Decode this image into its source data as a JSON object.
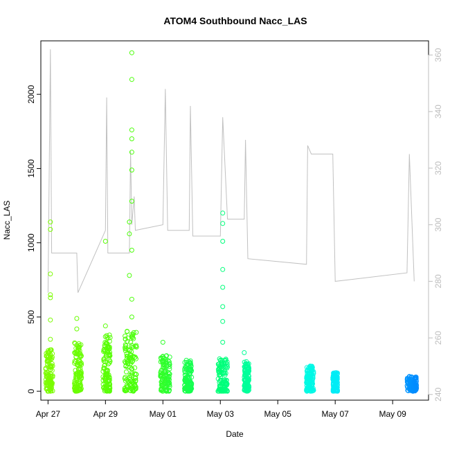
{
  "chart_data": {
    "type": "scatter",
    "title": "ATOM4 Southbound Nacc_LAS",
    "xlabel": "Date",
    "ylabel": "Nacc_LAS",
    "xlim": [
      "2018-04-26T18:00",
      "2018-05-10T06:00"
    ],
    "ylim": [
      -60,
      2360
    ],
    "y2lim": [
      238,
      365
    ],
    "grid": false,
    "x_ticks": [
      {
        "date": "2018-04-27",
        "label": "Apr 27"
      },
      {
        "date": "2018-04-29",
        "label": "Apr 29"
      },
      {
        "date": "2018-05-01",
        "label": "May 01"
      },
      {
        "date": "2018-05-03",
        "label": "May 03"
      },
      {
        "date": "2018-05-05",
        "label": "May 05"
      },
      {
        "date": "2018-05-07",
        "label": "May 07"
      },
      {
        "date": "2018-05-09",
        "label": "May 09"
      }
    ],
    "y_ticks": [
      0,
      500,
      1000,
      1500,
      2000
    ],
    "y2_ticks": [
      240,
      260,
      280,
      300,
      320,
      340,
      360
    ],
    "point_color_map": "time gradient from yellow-green (start) through green and cyan to blue (end)",
    "series": [
      {
        "kind": "points",
        "points": [
          {
            "x": "2018-04-27T02:00",
            "y": 1140
          },
          {
            "x": "2018-04-27T02:00",
            "y": 1090
          },
          {
            "x": "2018-04-27T02:00",
            "y": 790
          },
          {
            "x": "2018-04-27T02:00",
            "y": 650
          },
          {
            "x": "2018-04-27T02:00",
            "y": 630
          },
          {
            "x": "2018-04-27T02:00",
            "y": 480
          },
          {
            "x": "2018-04-27T02:00",
            "y": 350
          },
          {
            "x": "2018-04-28T00:00",
            "y": 490
          },
          {
            "x": "2018-04-28T00:00",
            "y": 420
          },
          {
            "x": "2018-04-29T00:00",
            "y": 1010
          },
          {
            "x": "2018-04-29T00:00",
            "y": 440
          },
          {
            "x": "2018-04-29T22:00",
            "y": 2280
          },
          {
            "x": "2018-04-29T22:00",
            "y": 2100
          },
          {
            "x": "2018-04-29T22:00",
            "y": 1760
          },
          {
            "x": "2018-04-29T22:00",
            "y": 1700
          },
          {
            "x": "2018-04-29T22:00",
            "y": 1610
          },
          {
            "x": "2018-04-29T22:00",
            "y": 1490
          },
          {
            "x": "2018-04-29T22:00",
            "y": 1280
          },
          {
            "x": "2018-04-29T20:00",
            "y": 1140
          },
          {
            "x": "2018-04-29T20:00",
            "y": 1060
          },
          {
            "x": "2018-04-29T22:00",
            "y": 950
          },
          {
            "x": "2018-04-29T20:00",
            "y": 780
          },
          {
            "x": "2018-04-29T22:00",
            "y": 620
          },
          {
            "x": "2018-04-29T22:00",
            "y": 500
          },
          {
            "x": "2018-05-01T00:00",
            "y": 330
          },
          {
            "x": "2018-05-03T02:00",
            "y": 1200
          },
          {
            "x": "2018-05-03T02:00",
            "y": 1130
          },
          {
            "x": "2018-05-03T02:00",
            "y": 1010
          },
          {
            "x": "2018-05-03T02:00",
            "y": 820
          },
          {
            "x": "2018-05-03T02:00",
            "y": 700
          },
          {
            "x": "2018-05-03T02:00",
            "y": 570
          },
          {
            "x": "2018-05-03T02:00",
            "y": 470
          },
          {
            "x": "2018-05-03T02:00",
            "y": 330
          },
          {
            "x": "2018-05-03T20:00",
            "y": 260
          },
          {
            "x": "2018-05-09T14:00",
            "y": 100
          }
        ]
      },
      {
        "kind": "point-clusters",
        "clusters": [
          {
            "x_start": "2018-04-26T22:00",
            "x_end": "2018-04-27T04:00",
            "y_max": 280
          },
          {
            "x_start": "2018-04-27T22:00",
            "x_end": "2018-04-28T04:00",
            "y_max": 330
          },
          {
            "x_start": "2018-04-28T22:00",
            "x_end": "2018-04-29T04:00",
            "y_max": 380
          },
          {
            "x_start": "2018-04-29T16:00",
            "x_end": "2018-04-30T02:00",
            "y_max": 420
          },
          {
            "x_start": "2018-04-30T22:00",
            "x_end": "2018-05-01T06:00",
            "y_max": 250
          },
          {
            "x_start": "2018-05-01T18:00",
            "x_end": "2018-05-02T00:00",
            "y_max": 210
          },
          {
            "x_start": "2018-05-02T22:00",
            "x_end": "2018-05-03T06:00",
            "y_max": 220
          },
          {
            "x_start": "2018-05-03T20:00",
            "x_end": "2018-05-04T00:00",
            "y_max": 200
          },
          {
            "x_start": "2018-05-06T00:00",
            "x_end": "2018-05-06T06:00",
            "y_max": 170
          },
          {
            "x_start": "2018-05-06T22:00",
            "x_end": "2018-05-07T02:00",
            "y_max": 125
          },
          {
            "x_start": "2018-05-09T12:00",
            "x_end": "2018-05-09T20:00",
            "y_max": 100
          }
        ]
      },
      {
        "kind": "line",
        "axis": "right",
        "color": "#c0c0c0",
        "points": [
          {
            "x": "2018-04-27T00:00",
            "y": 276
          },
          {
            "x": "2018-04-27T02:00",
            "y": 362
          },
          {
            "x": "2018-04-27T03:00",
            "y": 290
          },
          {
            "x": "2018-04-28T00:00",
            "y": 290
          },
          {
            "x": "2018-04-28T01:00",
            "y": 276
          },
          {
            "x": "2018-04-29T00:00",
            "y": 298
          },
          {
            "x": "2018-04-29T01:00",
            "y": 345
          },
          {
            "x": "2018-04-29T02:00",
            "y": 290
          },
          {
            "x": "2018-04-29T20:00",
            "y": 290
          },
          {
            "x": "2018-04-29T21:00",
            "y": 326
          },
          {
            "x": "2018-04-29T22:00",
            "y": 300
          },
          {
            "x": "2018-04-30T00:00",
            "y": 310
          },
          {
            "x": "2018-04-30T01:00",
            "y": 298
          },
          {
            "x": "2018-05-01T00:00",
            "y": 300
          },
          {
            "x": "2018-05-01T02:00",
            "y": 348
          },
          {
            "x": "2018-05-01T04:00",
            "y": 298
          },
          {
            "x": "2018-05-01T22:00",
            "y": 298
          },
          {
            "x": "2018-05-01T23:00",
            "y": 342
          },
          {
            "x": "2018-05-02T01:00",
            "y": 296
          },
          {
            "x": "2018-05-03T00:00",
            "y": 296
          },
          {
            "x": "2018-05-03T02:00",
            "y": 338
          },
          {
            "x": "2018-05-03T06:00",
            "y": 302
          },
          {
            "x": "2018-05-03T20:00",
            "y": 302
          },
          {
            "x": "2018-05-03T21:00",
            "y": 330
          },
          {
            "x": "2018-05-03T23:00",
            "y": 288
          },
          {
            "x": "2018-05-06T00:00",
            "y": 286
          },
          {
            "x": "2018-05-06T01:00",
            "y": 328
          },
          {
            "x": "2018-05-06T04:00",
            "y": 325
          },
          {
            "x": "2018-05-06T22:00",
            "y": 325
          },
          {
            "x": "2018-05-07T00:00",
            "y": 280
          },
          {
            "x": "2018-05-09T12:00",
            "y": 283
          },
          {
            "x": "2018-05-09T14:00",
            "y": 325
          },
          {
            "x": "2018-05-09T18:00",
            "y": 280
          }
        ]
      }
    ]
  }
}
